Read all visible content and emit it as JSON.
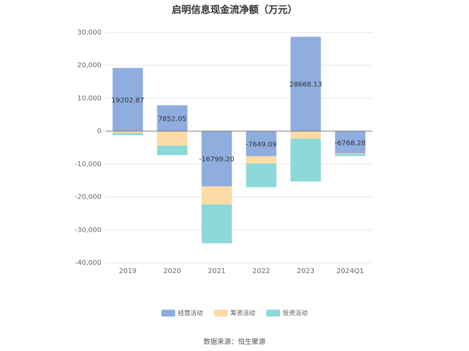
{
  "title": "启明信息现金流净额（万元）",
  "source": "数据来源：恒生聚源",
  "chart_data": {
    "type": "bar",
    "stacked": true,
    "categories": [
      "2019",
      "2020",
      "2021",
      "2022",
      "2023",
      "2024Q1"
    ],
    "ylim": [
      -40000,
      30000
    ],
    "yticks": [
      30000,
      20000,
      10000,
      0,
      -10000,
      -20000,
      -30000,
      -40000
    ],
    "ytick_labels": [
      "30,000",
      "20,000",
      "10,000",
      "0",
      "-10,000",
      "-20,000",
      "-30,000",
      "-40,000"
    ],
    "grid": true,
    "legend_position": "bottom",
    "series": [
      {
        "name": "经营活动",
        "color": "#8fadde",
        "values": [
          19202.87,
          7852.05,
          -16799.2,
          -7649.09,
          28668.13,
          -6768.28
        ],
        "labels": [
          "19202.87",
          "7852.05",
          "-16799.20",
          "-7649.09",
          "28668.13",
          "-6768.28"
        ]
      },
      {
        "name": "筹资活动",
        "color": "#fcdba6",
        "values": [
          -600,
          -4400,
          -5500,
          -2200,
          -2300,
          -200
        ]
      },
      {
        "name": "投资活动",
        "color": "#8dd8d8",
        "values": [
          -600,
          -2900,
          -11800,
          -7200,
          -13000,
          -600
        ]
      }
    ]
  }
}
